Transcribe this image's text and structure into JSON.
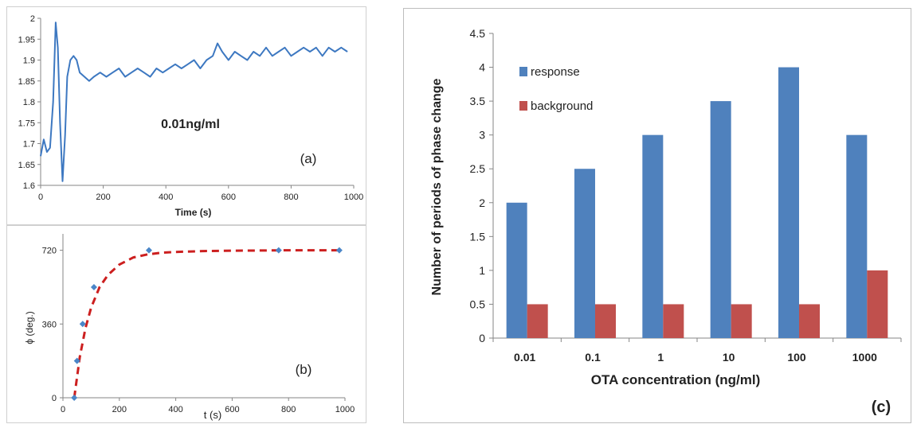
{
  "colors": {
    "line_a": "#3d78c1",
    "marker_b": "#4a86c8",
    "fit_b": "#cc1f1f",
    "response": "#4f81bd",
    "background": "#c0504d",
    "axis": "#868686"
  },
  "chart_data": [
    {
      "panel": "a",
      "type": "line",
      "xlabel": "Time (s)",
      "ylabel": "",
      "xlim": [
        0,
        1000
      ],
      "ylim": [
        1.6,
        2.0
      ],
      "xticks": [
        "0",
        "200",
        "400",
        "600",
        "800",
        "1000"
      ],
      "yticks": [
        "1.6",
        "1.65",
        "1.7",
        "1.75",
        "1.8",
        "1.85",
        "1.9",
        "1.95",
        "2"
      ],
      "annotations": [
        "0.01ng/ml",
        "(a)"
      ],
      "series": [
        {
          "x": [
            0,
            10,
            20,
            30,
            40,
            48,
            55,
            62,
            70,
            78,
            85,
            95,
            105,
            115,
            125,
            140,
            155,
            170,
            190,
            210,
            230,
            250,
            270,
            290,
            310,
            330,
            350,
            370,
            390,
            410,
            430,
            450,
            470,
            490,
            510,
            530,
            550,
            565,
            580,
            600,
            620,
            640,
            660,
            680,
            700,
            720,
            740,
            760,
            780,
            800,
            820,
            840,
            860,
            880,
            900,
            920,
            940,
            960,
            980
          ],
          "y": [
            1.67,
            1.71,
            1.68,
            1.69,
            1.8,
            1.99,
            1.93,
            1.75,
            1.61,
            1.72,
            1.86,
            1.9,
            1.91,
            1.9,
            1.87,
            1.86,
            1.85,
            1.86,
            1.87,
            1.86,
            1.87,
            1.88,
            1.86,
            1.87,
            1.88,
            1.87,
            1.86,
            1.88,
            1.87,
            1.88,
            1.89,
            1.88,
            1.89,
            1.9,
            1.88,
            1.9,
            1.91,
            1.94,
            1.92,
            1.9,
            1.92,
            1.91,
            1.9,
            1.92,
            1.91,
            1.93,
            1.91,
            1.92,
            1.93,
            1.91,
            1.92,
            1.93,
            1.92,
            1.93,
            1.91,
            1.93,
            1.92,
            1.93,
            1.92
          ]
        }
      ]
    },
    {
      "panel": "b",
      "type": "scatter",
      "xlabel": "t (s)",
      "ylabel": "ϕ (deg.)",
      "xlim": [
        0,
        1000
      ],
      "ylim": [
        0,
        800
      ],
      "xticks": [
        "0",
        "200",
        "400",
        "600",
        "800",
        "1000"
      ],
      "yticks": [
        "0",
        "360",
        "720"
      ],
      "annotations": [
        "(b)"
      ],
      "points": {
        "x": [
          40,
          50,
          70,
          110,
          305,
          765,
          980
        ],
        "y": [
          0,
          180,
          360,
          540,
          720,
          720,
          720
        ]
      },
      "fit": {
        "x": [
          40,
          60,
          80,
          100,
          130,
          160,
          200,
          250,
          300,
          350,
          400,
          500,
          600,
          700,
          800,
          900,
          980
        ],
        "y": [
          0,
          200,
          340,
          440,
          540,
          600,
          650,
          685,
          700,
          708,
          712,
          716,
          718,
          719,
          720,
          720,
          720
        ]
      }
    },
    {
      "panel": "c",
      "type": "bar",
      "xlabel": "OTA concentration (ng/ml)",
      "ylabel": "Number  of periods of phase change",
      "ylim": [
        0,
        4.5
      ],
      "yticks": [
        "0",
        "0.5",
        "1",
        "1.5",
        "2",
        "2.5",
        "3",
        "3.5",
        "4",
        "4.5"
      ],
      "categories": [
        "0.01",
        "0.1",
        "1",
        "10",
        "100",
        "1000"
      ],
      "legend_position": "top-left",
      "annotations": [
        "(c)"
      ],
      "series": [
        {
          "name": "response",
          "values": [
            2,
            2.5,
            3,
            3.5,
            4,
            3
          ]
        },
        {
          "name": "background",
          "values": [
            0.5,
            0.5,
            0.5,
            0.5,
            0.5,
            1
          ]
        }
      ]
    }
  ]
}
